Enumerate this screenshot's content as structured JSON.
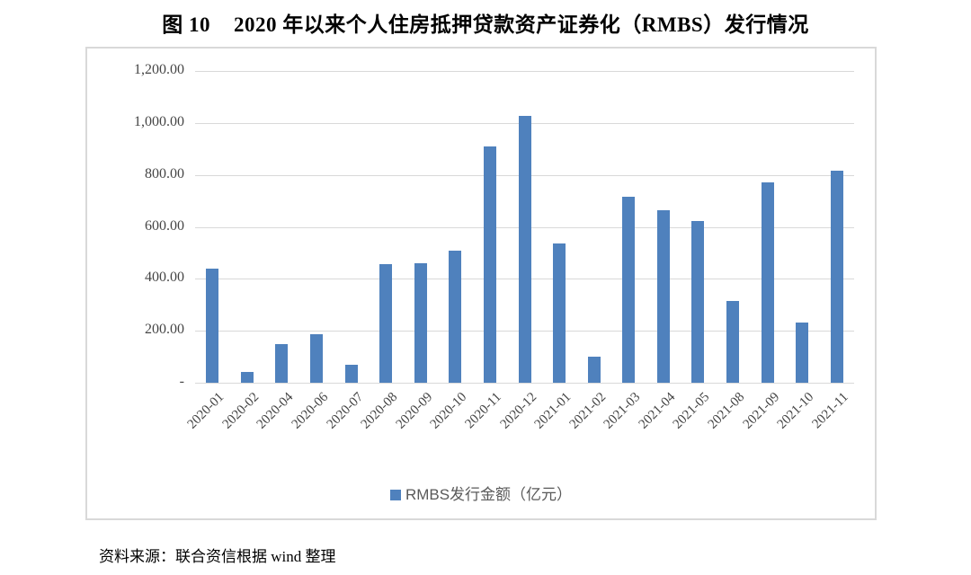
{
  "figure_label": "图 10",
  "title": "2020 年以来个人住房抵押贷款资产证券化（RMBS）发行情况",
  "source": "资料来源：联合资信根据 wind 整理",
  "legend": {
    "label": "RMBS发行金额（亿元）"
  },
  "colors": {
    "bar": "#4F81BD",
    "grid": "#D9D9D9",
    "frame_border": "#D9D9D9",
    "axis_text": "#454545",
    "legend_text": "#595959"
  },
  "chart_data": {
    "type": "bar",
    "title": "图 10 2020 年以来个人住房抵押贷款资产证券化（RMBS）发行情况",
    "categories": [
      "2020-01",
      "2020-02",
      "2020-04",
      "2020-06",
      "2020-07",
      "2020-08",
      "2020-09",
      "2020-10",
      "2020-11",
      "2020-12",
      "2021-01",
      "2021-02",
      "2021-03",
      "2021-04",
      "2021-05",
      "2021-08",
      "2021-09",
      "2021-10",
      "2021-11"
    ],
    "values": [
      438,
      40,
      147,
      188,
      68,
      457,
      461,
      508,
      910,
      1027,
      537,
      100,
      715,
      663,
      623,
      313,
      770,
      230,
      815
    ],
    "xlabel": "",
    "ylabel": "",
    "ylim": [
      0,
      1200
    ],
    "ytick_interval": 200,
    "ytick_labels_top_to_bottom": [
      "1,200.00",
      "1,000.00",
      "800.00",
      "600.00",
      "400.00",
      "200.00",
      "-"
    ],
    "grid": true,
    "legend": "RMBS发行金额（亿元）",
    "legend_position": "bottom"
  }
}
